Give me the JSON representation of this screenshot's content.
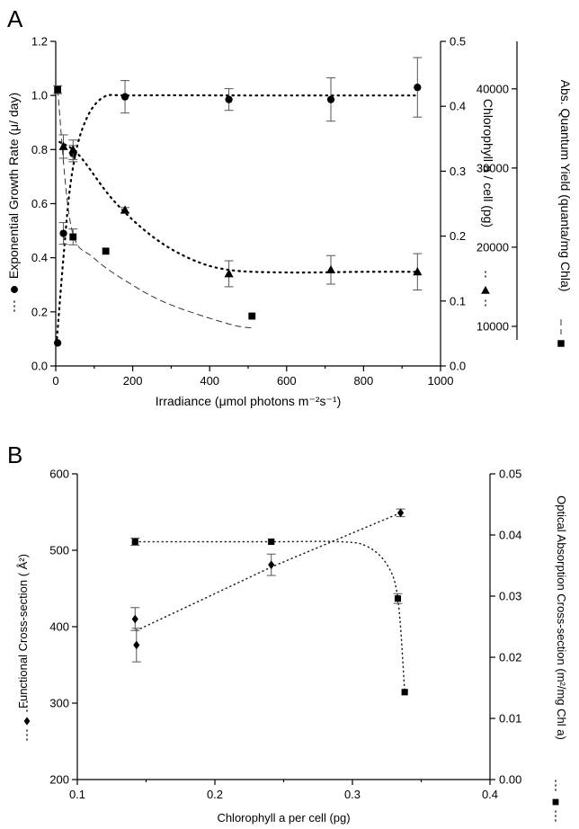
{
  "chart_data": [
    {
      "panel": "A",
      "type": "scatter",
      "xlabel": "Irradiance (μmol photons m⁻²s⁻¹)",
      "xlim": [
        0,
        1000
      ],
      "xticks": [
        "0",
        "200",
        "400",
        "600",
        "800",
        "1000"
      ],
      "y_axes": [
        {
          "label": "Exponential Growth Rate (μ/ day)",
          "ylim": [
            0,
            1.2
          ],
          "ticks": [
            "0.0",
            "0.2",
            "0.4",
            "0.6",
            "0.8",
            "1.0",
            "1.2"
          ],
          "legend_marker": "circle"
        },
        {
          "label": "Chlorophyll a / cell (pg)",
          "ylim": [
            0,
            0.5
          ],
          "ticks": [
            "0.0",
            "0.1",
            "0.2",
            "0.3",
            "0.4",
            "0.5"
          ],
          "legend_marker": "triangle"
        },
        {
          "label": "Abs. Quantum Yield (quanta/mg Chla)",
          "ylim": [
            5000,
            46000
          ],
          "ticks": [
            "10000",
            "20000",
            "30000",
            "40000"
          ],
          "legend_marker": "square"
        }
      ],
      "series": [
        {
          "axis": 0,
          "marker": "circle",
          "x": [
            5,
            20,
            45,
            180,
            450,
            715,
            940
          ],
          "y": [
            0.085,
            0.49,
            0.785,
            0.995,
            0.985,
            0.985,
            1.03
          ],
          "err": [
            0,
            0.04,
            0.03,
            0.06,
            0.04,
            0.08,
            0.11
          ],
          "fit": "dotted",
          "fit_y": [
            0.08,
            0.4,
            0.69,
            0.88,
            0.99,
            1.0,
            1.0,
            1.0
          ]
        },
        {
          "axis": 1,
          "marker": "triangle",
          "x": [
            20,
            45,
            180,
            450,
            715,
            940
          ],
          "y": [
            0.338,
            0.333,
            0.24,
            0.142,
            0.148,
            0.145
          ],
          "err": [
            0.018,
            0.015,
            0.004,
            0.02,
            0.022,
            0.028
          ],
          "fit": "dotted",
          "fit_y": [
            0.345,
            0.325,
            0.255,
            0.2,
            0.165,
            0.148,
            0.144,
            0.145,
            0.145
          ]
        },
        {
          "axis": 2,
          "marker": "square",
          "x": [
            5,
            45,
            130,
            510
          ],
          "y": [
            39900,
            21300,
            19500,
            11300
          ],
          "err": [
            500,
            1000,
            0,
            0
          ],
          "fit": "dashed",
          "fit_y": [
            39900,
            22600,
            18600,
            15200,
            12700,
            10300,
            9800
          ]
        }
      ]
    },
    {
      "panel": "B",
      "type": "scatter",
      "xlabel": "Chlorophyll a per cell (pg)",
      "xlim": [
        0.1,
        0.4
      ],
      "xticks": [
        "0.1",
        "0.2",
        "0.3",
        "0.4"
      ],
      "y_axes": [
        {
          "label": "Functional Cross-section ( Å²)",
          "ylim": [
            200,
            600
          ],
          "ticks": [
            "200",
            "300",
            "400",
            "500",
            "600"
          ],
          "legend_marker": "diamond"
        },
        {
          "label": "Optical Absorption Cross-section (m²/mg Chl a)",
          "ylim": [
            0,
            0.05
          ],
          "ticks": [
            "0.00",
            "0.01",
            "0.02",
            "0.03",
            "0.04",
            "0.05"
          ],
          "legend_marker": "square"
        }
      ],
      "series": [
        {
          "axis": 0,
          "marker": "diamond",
          "x": [
            0.142,
            0.143,
            0.241,
            0.335
          ],
          "y": [
            410,
            376,
            481,
            549
          ],
          "err": [
            15,
            22,
            14,
            5
          ],
          "fit": "dotted"
        },
        {
          "axis": 1,
          "marker": "square",
          "x": [
            0.142,
            0.241,
            0.333,
            0.338
          ],
          "y": [
            0.0389,
            0.0389,
            0.0296,
            0.0143
          ],
          "err": [
            0.0006,
            0,
            0.0008,
            0
          ],
          "fit": "dotted"
        }
      ]
    }
  ],
  "panel_labels": [
    "A",
    "B"
  ]
}
